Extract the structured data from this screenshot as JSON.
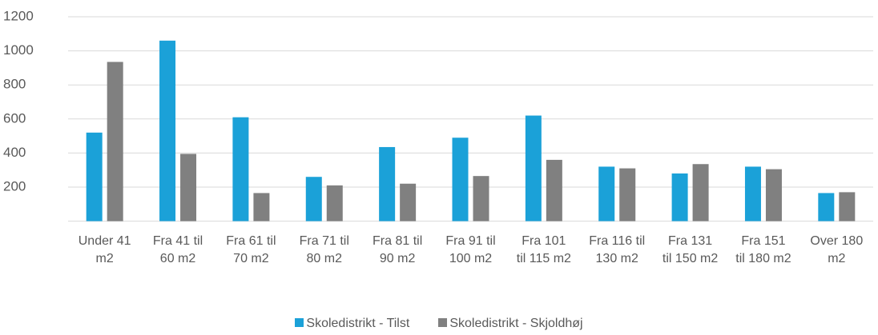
{
  "chart_data": {
    "type": "bar",
    "categories": [
      "Under 41 m2",
      "Fra 41 til 60 m2",
      "Fra 61 til 70 m2",
      "Fra 71 til 80 m2",
      "Fra 81 til 90 m2",
      "Fra 91 til 100 m2",
      "Fra 101 til 115 m2",
      "Fra 116 til 130 m2",
      "Fra 131 til 150 m2",
      "Fra 151 til 180 m2",
      "Over 180 m2"
    ],
    "series": [
      {
        "name": "Skoledistrikt - Tilst",
        "color": "#1ba1d8",
        "values": [
          520,
          1060,
          610,
          260,
          435,
          490,
          620,
          320,
          280,
          320,
          165
        ]
      },
      {
        "name": "Skoledistrikt - Skjoldhøj",
        "color": "#808080",
        "values": [
          935,
          395,
          165,
          210,
          220,
          265,
          360,
          310,
          335,
          305,
          170
        ]
      }
    ],
    "ylim": [
      0,
      1200
    ],
    "yticks": [
      200,
      400,
      600,
      800,
      1000,
      1200
    ],
    "grid": true,
    "legend": "bottom"
  }
}
